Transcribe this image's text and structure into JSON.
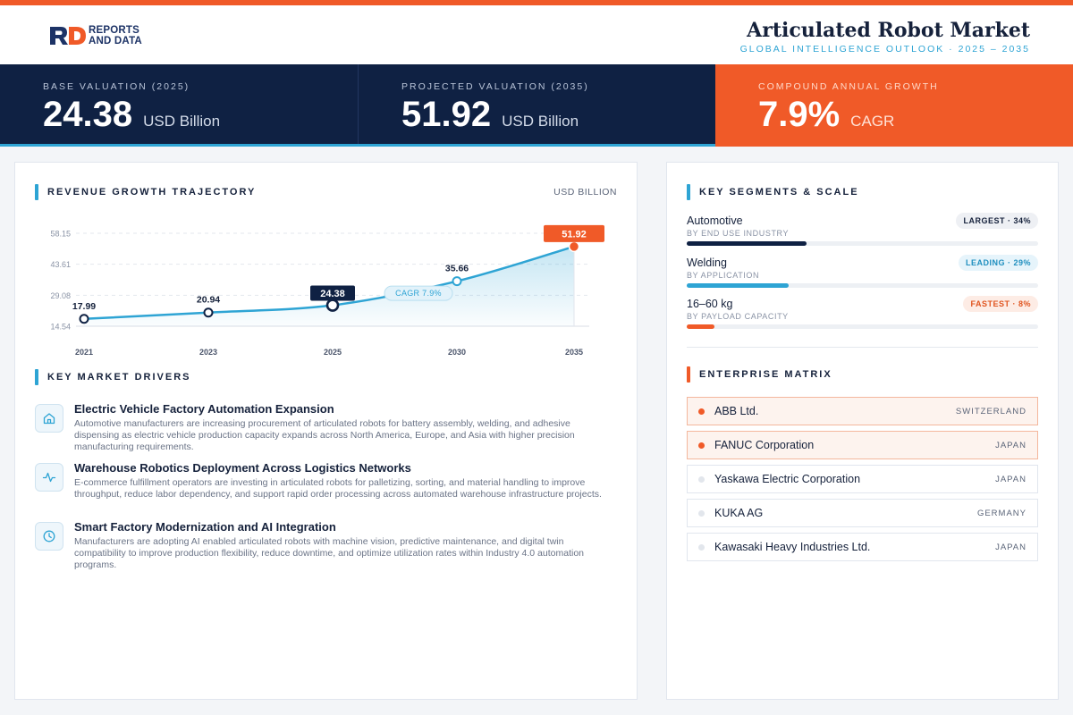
{
  "brand": {
    "line1": "REPORTS",
    "line2": "AND DATA"
  },
  "header": {
    "title": "Articulated Robot Market",
    "subtitle": "GLOBAL INTELLIGENCE OUTLOOK · 2025 – 2035"
  },
  "stats": [
    {
      "label": "BASE VALUATION (2025)",
      "value": "24.38",
      "unit": "USD Billion"
    },
    {
      "label": "PROJECTED VALUATION (2035)",
      "value": "51.92",
      "unit": "USD Billion"
    },
    {
      "label": "COMPOUND ANNUAL GROWTH",
      "value": "7.9%",
      "unit": "CAGR"
    }
  ],
  "colors": {
    "accent": "#f05a28",
    "navy": "#0f2143",
    "blue": "#2ea4d4"
  },
  "revenue": {
    "title": "REVENUE GROWTH TRAJECTORY",
    "unit": "USD BILLION"
  },
  "chart_data": {
    "type": "area",
    "x": [
      "2021",
      "2023",
      "2025",
      "2030",
      "2035"
    ],
    "values": [
      17.99,
      20.94,
      24.38,
      35.66,
      51.92
    ],
    "value_labels": [
      "17.99",
      "20.94",
      "24.38",
      "35.66",
      "51.92"
    ],
    "yticks": [
      "58.15",
      "43.61",
      "29.08",
      "14.54"
    ],
    "ytick_values": [
      58.15,
      43.61,
      29.08,
      14.54
    ],
    "ylim": [
      14.54,
      58.15
    ],
    "annotation": "CAGR 7.9%",
    "highlight": [
      "2025",
      "2035"
    ],
    "grid": true
  },
  "drivers": {
    "title": "KEY MARKET DRIVERS",
    "items": [
      {
        "icon": "factory-icon",
        "title": "Electric Vehicle Factory Automation Expansion",
        "desc": "Automotive manufacturers are increasing procurement of articulated robots for battery assembly, welding, and adhesive dispensing as electric vehicle production capacity expands across North America, Europe, and Asia with higher precision manufacturing requirements."
      },
      {
        "icon": "pulse-icon",
        "title": "Warehouse Robotics Deployment Across Logistics Networks",
        "desc": "E-commerce fulfillment operators are investing in articulated robots for palletizing, sorting, and material handling to improve throughput, reduce labor dependency, and support rapid order processing across automated warehouse infrastructure projects."
      },
      {
        "icon": "clock-icon",
        "title": "Smart Factory Modernization and AI Integration",
        "desc": "Manufacturers are adopting AI enabled articulated robots with machine vision, predictive maintenance, and digital twin compatibility to improve production flexibility, reduce downtime, and optimize utilization rates within Industry 4.0 automation programs."
      }
    ]
  },
  "segments": {
    "title": "KEY SEGMENTS & SCALE",
    "items": [
      {
        "name": "Automotive",
        "sub": "BY END USE INDUSTRY",
        "badge": "LARGEST · 34%",
        "share": 0.34,
        "color": "#0f2143",
        "badge_bg": "#eef0f4",
        "badge_fg": "#15213b"
      },
      {
        "name": "Welding",
        "sub": "BY APPLICATION",
        "badge": "LEADING · 29%",
        "share": 0.29,
        "color": "#2ea4d4",
        "badge_bg": "#e6f4fb",
        "badge_fg": "#1f8fbf"
      },
      {
        "name": "16–60 kg",
        "sub": "BY PAYLOAD CAPACITY",
        "badge": "FASTEST · 8%",
        "share": 0.08,
        "color": "#f05a28",
        "badge_bg": "#fdece5",
        "badge_fg": "#e0541f"
      }
    ]
  },
  "matrix": {
    "title": "ENTERPRISE MATRIX",
    "items": [
      {
        "name": "ABB Ltd.",
        "country": "SWITZERLAND",
        "highlight": true
      },
      {
        "name": "FANUC Corporation",
        "country": "JAPAN",
        "highlight": true
      },
      {
        "name": "Yaskawa Electric Corporation",
        "country": "JAPAN",
        "highlight": false
      },
      {
        "name": "KUKA AG",
        "country": "GERMANY",
        "highlight": false
      },
      {
        "name": "Kawasaki Heavy Industries Ltd.",
        "country": "JAPAN",
        "highlight": false
      }
    ]
  }
}
